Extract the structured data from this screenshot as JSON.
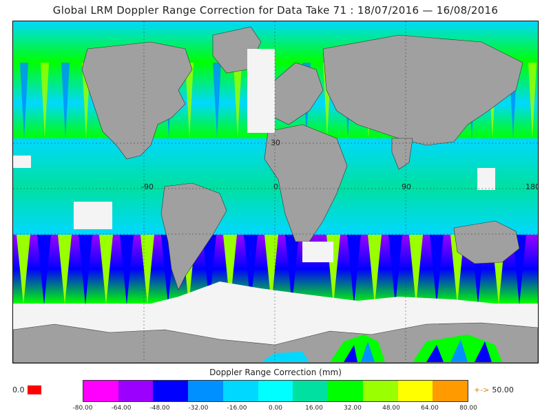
{
  "title": "Global LRM Doppler Range Correction for Data Take 71 : 18/07/2016 — 16/08/2016",
  "map": {
    "lon_labels": [
      "-90",
      "0",
      "90",
      "180"
    ],
    "lat_labels": [
      "30"
    ],
    "land_color": "#a0a0a0",
    "no_data_color": "#f4f4f4"
  },
  "colorbar": {
    "title": "Doppler Range Correction (mm)",
    "ticks": [
      "-80.00",
      "-64.00",
      "-48.00",
      "-32.00",
      "-16.00",
      "0.00",
      "16.00",
      "32.00",
      "48.00",
      "64.00",
      "80.00"
    ],
    "colors": [
      "#ff00ff",
      "#9b00ff",
      "#0000ff",
      "#0090ff",
      "#00d8ff",
      "#00ffff",
      "#00e0a0",
      "#00ff00",
      "#9aff00",
      "#ffff00",
      "#ff9a00"
    ],
    "missing_label": "0.0",
    "missing_color": "#ff0000",
    "over_arrow": "+->",
    "over_label": "50.00",
    "over_color": "#e08000"
  }
}
